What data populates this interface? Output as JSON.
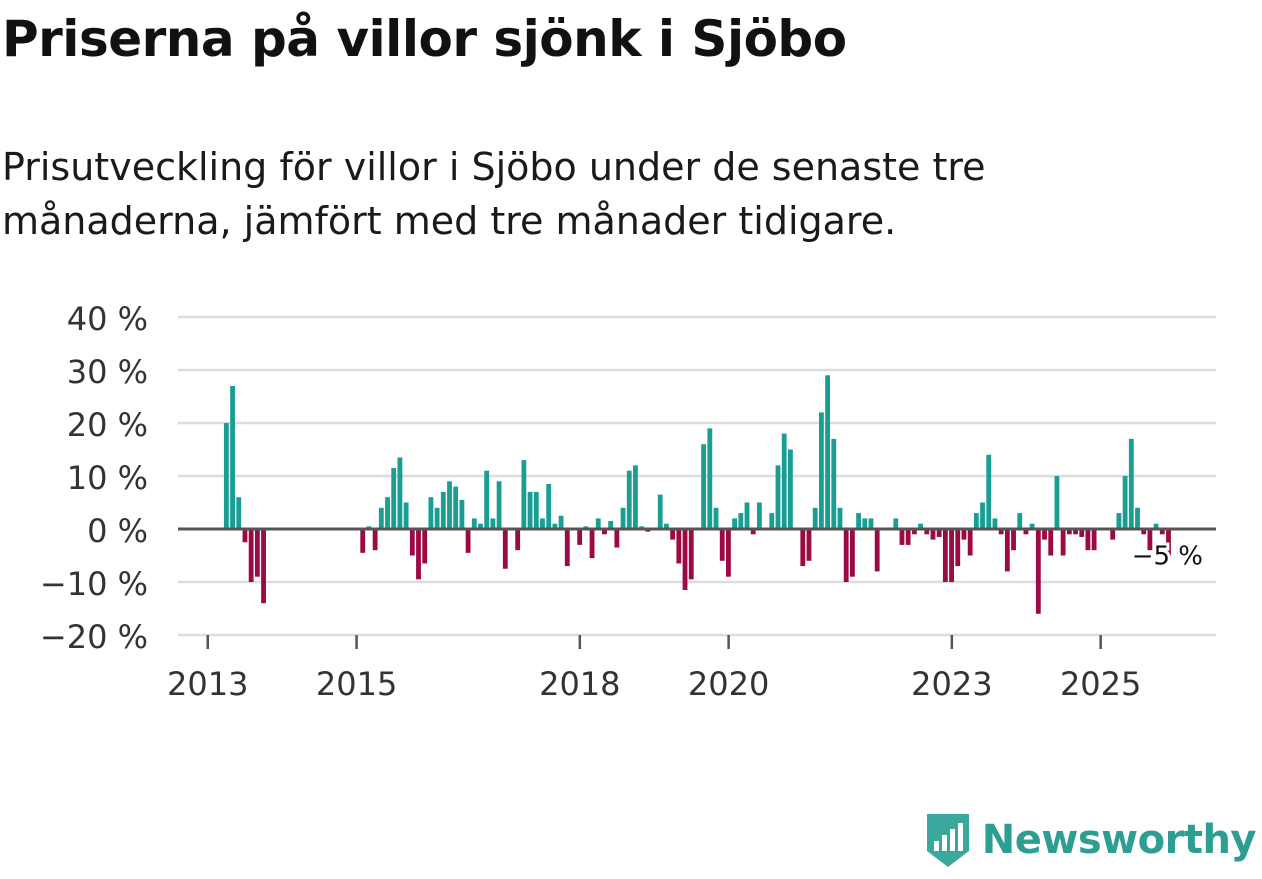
{
  "header": {
    "title": "Priserna på villor sjönk i Sjöbo",
    "subtitle": "Prisutveckling för villor i Sjöbo under de senaste tre månaderna, jämfört med tre månader tidigare."
  },
  "brand": {
    "name": "Newsworthy",
    "icon": "newsworthy-logo-icon"
  },
  "colors": {
    "positive": "#1a9e93",
    "negative": "#9b0a44",
    "grid": "#dddddd",
    "zero_line": "#555555",
    "text": "#333333",
    "brand": "#2e9e93"
  },
  "chart_data": {
    "type": "bar",
    "title": "Priserna på villor sjönk i Sjöbo",
    "ylabel": "",
    "xlabel": "",
    "ylim": [
      -20,
      40
    ],
    "xlim": [
      2012.6,
      2026.55
    ],
    "yticks": [
      {
        "value": 40,
        "label": "40 %"
      },
      {
        "value": 30,
        "label": "30 %"
      },
      {
        "value": 20,
        "label": "20 %"
      },
      {
        "value": 10,
        "label": "10 %"
      },
      {
        "value": 0,
        "label": "0 %"
      },
      {
        "value": -10,
        "label": "−10 %"
      },
      {
        "value": -20,
        "label": "−20 %"
      }
    ],
    "xticks": [
      {
        "value": 2013,
        "label": "2013"
      },
      {
        "value": 2015,
        "label": "2015"
      },
      {
        "value": 2018,
        "label": "2018"
      },
      {
        "value": 2020,
        "label": "2020"
      },
      {
        "value": 2023,
        "label": "2023"
      },
      {
        "value": 2025,
        "label": "2025"
      }
    ],
    "start_year": 2013.25,
    "step_per_bar": 0.0833,
    "values": [
      20,
      27,
      6,
      -2.5,
      -10,
      -9,
      -14,
      null,
      null,
      null,
      null,
      null,
      null,
      null,
      null,
      null,
      null,
      null,
      null,
      null,
      null,
      null,
      -4.5,
      0.5,
      -4,
      4,
      6,
      11.5,
      13.5,
      5,
      -5,
      -9.5,
      -6.5,
      6,
      4,
      7,
      9,
      8,
      5.5,
      -4.5,
      2,
      1,
      11,
      2,
      9,
      -7.5,
      0,
      -4,
      13,
      7,
      7,
      2,
      8.5,
      1,
      2.5,
      -7,
      0,
      -3,
      0.5,
      -5.5,
      2,
      -1,
      1.5,
      -3.5,
      4,
      11,
      12,
      0.5,
      -0.5,
      0,
      6.5,
      1,
      -2,
      -6.5,
      -11.5,
      -9.5,
      0,
      16,
      19,
      4,
      -6,
      -9,
      2,
      3,
      5,
      -1,
      5,
      0,
      3,
      12,
      18,
      15,
      0,
      -7,
      -6,
      4,
      22,
      29,
      17,
      4,
      -10,
      -9,
      3,
      2,
      2,
      -8,
      0,
      0,
      2,
      -3,
      -3,
      -1,
      1,
      -1,
      -2,
      -1.5,
      -10,
      -10,
      -7,
      -2,
      -5,
      3,
      5,
      14,
      2,
      -1,
      -8,
      -4,
      3,
      -1,
      1,
      -16,
      -2,
      -5,
      10,
      -5,
      -1,
      -1,
      -1.5,
      -4,
      -4,
      0,
      0,
      -2,
      3,
      10,
      17,
      4,
      -1,
      -4,
      1,
      -1,
      -5
    ],
    "last_label": "−5 %",
    "last_value": -5
  }
}
